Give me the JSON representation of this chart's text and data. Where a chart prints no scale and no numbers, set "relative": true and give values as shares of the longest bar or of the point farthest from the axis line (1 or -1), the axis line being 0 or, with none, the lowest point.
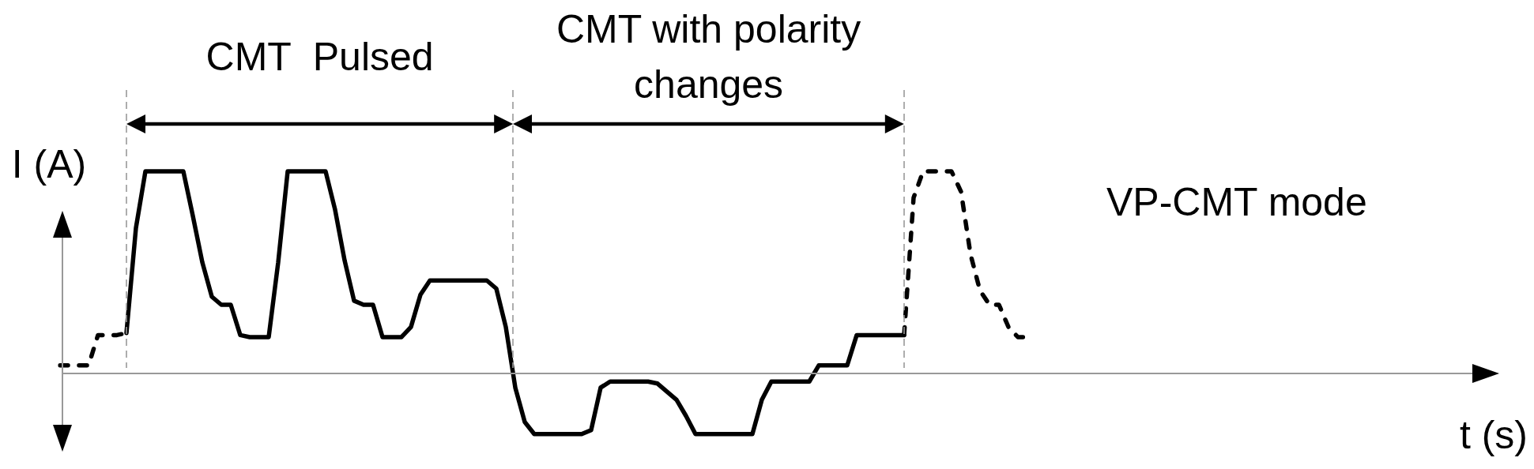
{
  "chart_data": {
    "type": "line",
    "relative": true,
    "marker": "none",
    "xlabel": "t (s)",
    "ylabel": "I (A)",
    "annotations": [
      "CMT  Pulsed",
      "CMT with polarity changes",
      "VP-CMT mode"
    ],
    "categories": [
      null,
      null,
      null,
      null,
      null,
      null,
      null,
      null,
      null,
      null,
      null,
      null,
      null,
      null,
      null,
      null,
      null,
      null,
      null,
      null,
      null,
      null,
      null,
      null,
      null,
      null,
      null,
      null,
      null,
      null,
      null,
      null,
      null,
      null,
      null,
      null,
      null,
      null,
      null,
      null,
      null,
      null,
      null,
      null,
      null,
      null,
      null,
      null,
      null,
      null,
      null,
      null,
      null,
      null,
      null,
      null,
      null,
      null,
      null,
      null,
      null,
      null,
      null,
      null,
      null,
      null,
      null,
      null,
      null,
      null,
      null,
      null,
      null,
      null,
      null,
      null,
      null,
      null,
      null,
      null,
      null,
      null,
      null,
      null,
      null,
      null,
      null,
      null,
      null,
      null,
      null,
      null,
      null,
      null,
      null,
      null,
      null,
      null,
      null,
      null,
      null,
      null,
      null,
      null,
      null,
      null,
      null,
      null,
      null,
      null,
      null,
      null,
      null,
      null,
      null,
      null,
      null,
      null,
      null,
      null,
      null,
      null,
      null,
      null,
      null,
      null,
      null,
      null,
      null,
      null,
      null,
      null,
      null,
      null,
      null,
      null,
      null,
      null,
      null,
      null,
      null,
      null,
      null,
      null,
      null,
      null,
      null,
      null,
      null,
      null,
      null,
      null
    ],
    "series": [
      {
        "color": "#000000",
        "line_style": "dashed",
        "values": [
          0.04,
          0.04,
          0.04,
          0.04,
          0.19,
          0.19,
          0.19,
          0.2,
          null,
          null,
          null,
          null,
          null,
          null,
          null,
          null,
          null,
          null,
          null,
          null,
          null,
          null,
          null,
          null,
          null,
          null,
          null,
          null,
          null,
          null,
          null,
          null,
          null,
          null,
          null,
          null,
          null,
          null,
          null,
          null,
          null,
          null,
          null,
          null,
          null,
          null,
          null,
          null,
          null,
          null,
          null,
          null,
          null,
          null,
          null,
          null,
          null,
          null,
          null,
          null,
          null,
          null,
          null,
          null,
          null,
          null,
          null,
          null,
          null,
          null,
          null,
          null,
          null,
          null,
          null,
          null,
          null,
          null,
          null,
          null,
          null,
          null,
          null,
          null,
          null,
          null,
          null,
          null,
          null,
          null,
          null,
          null,
          null,
          null,
          null,
          null,
          null,
          null,
          null,
          null,
          null,
          null,
          null,
          null,
          null,
          null,
          null,
          null,
          null,
          null,
          null,
          null,
          null,
          null,
          null,
          null,
          null,
          null,
          null,
          null,
          null,
          null,
          null,
          null,
          null,
          null,
          null,
          null,
          null,
          null,
          null,
          null,
          null,
          null,
          null,
          null,
          null,
          null,
          null,
          null,
          null,
          null,
          null,
          null,
          null,
          null,
          null,
          null,
          null,
          null,
          null,
          null
        ]
      },
      {
        "color": "#000000",
        "line_style": "solid",
        "values": [
          null,
          null,
          null,
          null,
          null,
          null,
          null,
          0.2,
          0.72,
          1,
          1,
          1,
          1,
          1,
          0.78,
          0.55,
          0.38,
          0.34,
          0.34,
          0.19,
          0.18,
          0.18,
          0.18,
          0.55,
          1,
          1,
          1,
          1,
          1,
          0.81,
          0.56,
          0.36,
          0.34,
          0.34,
          0.18,
          0.18,
          0.18,
          0.23,
          0.39,
          0.46,
          0.46,
          0.46,
          0.46,
          0.46,
          0.46,
          0.46,
          0.42,
          0.23,
          -0.07,
          -0.24,
          -0.3,
          -0.3,
          -0.3,
          -0.3,
          -0.3,
          -0.3,
          -0.28,
          -0.07,
          -0.04,
          -0.04,
          -0.04,
          -0.04,
          -0.04,
          -0.05,
          -0.09,
          -0.13,
          -0.21,
          -0.3,
          -0.3,
          -0.3,
          -0.3,
          -0.3,
          -0.3,
          -0.3,
          -0.13,
          -0.04,
          -0.04,
          -0.04,
          -0.04,
          -0.04,
          0.04,
          0.04,
          0.04,
          0.04,
          0.19,
          0.19,
          0.19,
          0.19,
          0.19,
          0.19,
          null,
          null,
          null,
          null,
          null,
          null,
          null,
          null,
          null,
          null,
          null,
          null,
          null,
          null,
          null,
          null,
          null,
          null,
          null,
          null,
          null,
          null,
          null,
          null,
          null,
          null,
          null,
          null,
          null,
          null,
          null,
          null,
          null,
          null,
          null,
          null,
          null,
          null,
          null,
          null,
          null,
          null,
          null,
          null,
          null,
          null,
          null,
          null,
          null,
          null,
          null,
          null,
          null,
          null,
          null,
          null,
          null,
          null,
          null,
          null,
          null,
          null
        ]
      },
      {
        "color": "#000000",
        "line_style": "dashed",
        "values": [
          null,
          null,
          null,
          null,
          null,
          null,
          null,
          null,
          null,
          null,
          null,
          null,
          null,
          null,
          null,
          null,
          null,
          null,
          null,
          null,
          null,
          null,
          null,
          null,
          null,
          null,
          null,
          null,
          null,
          null,
          null,
          null,
          null,
          null,
          null,
          null,
          null,
          null,
          null,
          null,
          null,
          null,
          null,
          null,
          null,
          null,
          null,
          null,
          null,
          null,
          null,
          null,
          null,
          null,
          null,
          null,
          null,
          null,
          null,
          null,
          null,
          null,
          null,
          null,
          null,
          null,
          null,
          null,
          null,
          null,
          null,
          null,
          null,
          null,
          null,
          null,
          null,
          null,
          null,
          null,
          null,
          null,
          null,
          null,
          null,
          null,
          null,
          null,
          null,
          0.19,
          0.87,
          1,
          1,
          1,
          1,
          0.9,
          0.59,
          0.41,
          0.34,
          0.34,
          0.23,
          0.18,
          0.18,
          null,
          null,
          null,
          null,
          null,
          null,
          null,
          null,
          null,
          null,
          null,
          null,
          null,
          null,
          null,
          null,
          null,
          null,
          null,
          null,
          null,
          null,
          null,
          null,
          null,
          null,
          null,
          null,
          null,
          null,
          null,
          null,
          null,
          null,
          null,
          null,
          null,
          null,
          null,
          null,
          null,
          null,
          null,
          null,
          null,
          null,
          null,
          null,
          null
        ]
      }
    ]
  }
}
